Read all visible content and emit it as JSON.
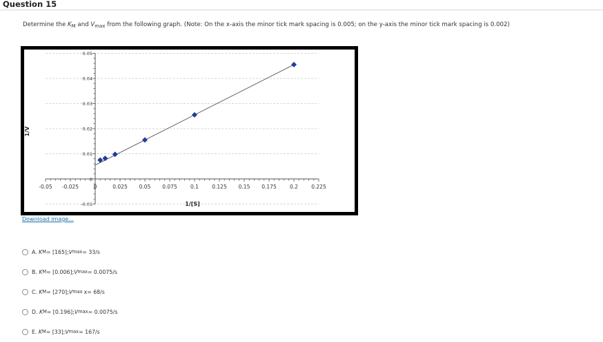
{
  "question": {
    "title": "Question 15",
    "prompt_prefix": "Determine the ",
    "km_symbol": "K",
    "km_sub": "M",
    "and_text": " and ",
    "vmax_symbol": "V",
    "vmax_sub": "max",
    "prompt_suffix": " from the following graph. (Note:  On the x-axis the minor tick mark spacing is 0.005; on the y-axis the minor tick mark spacing is 0.002)"
  },
  "download_link": "Download image...",
  "chart_data": {
    "type": "scatter",
    "xlabel": "1/[S]",
    "ylabel": "1/V",
    "xlim": [
      -0.05,
      0.225
    ],
    "ylim": [
      -0.01,
      0.05
    ],
    "x_ticks": [
      -0.05,
      -0.025,
      0,
      0.025,
      0.05,
      0.075,
      0.1,
      0.125,
      0.15,
      0.175,
      0.2,
      0.225
    ],
    "x_tick_labels": [
      "-0.05",
      "-0.025",
      "0",
      "0.025",
      "0.05",
      "0.075",
      "0.1",
      "0.125",
      "0.15",
      "0.175",
      "0.2",
      "0.225"
    ],
    "y_ticks": [
      -0.01,
      0,
      0.01,
      0.02,
      0.03,
      0.04,
      0.05
    ],
    "y_tick_labels": [
      "-0.01",
      "0",
      "0.01",
      "0.02",
      "0.03",
      "0.04",
      "0.05"
    ],
    "x_minor_step": 0.005,
    "y_minor_step": 0.002,
    "grid": true,
    "series": [
      {
        "points": [
          {
            "x": 0.005,
            "y": 0.0075
          },
          {
            "x": 0.01,
            "y": 0.0082
          },
          {
            "x": 0.02,
            "y": 0.0098
          },
          {
            "x": 0.05,
            "y": 0.0155
          },
          {
            "x": 0.1,
            "y": 0.0255
          },
          {
            "x": 0.2,
            "y": 0.0455
          }
        ],
        "color": "#1f3d99"
      }
    ],
    "trendline": {
      "x_start": 0.0,
      "x_end": 0.2,
      "slope": 0.2,
      "intercept": 0.0055,
      "color": "#555555"
    }
  },
  "options": [
    {
      "letter": "A.",
      "km_value": " = [165]; ",
      "vmax_value": " = 33/s",
      "extra": ""
    },
    {
      "letter": "B.",
      "km_value": " = [0.006]; ",
      "vmax_value": " = 0.0075/s",
      "extra": ""
    },
    {
      "letter": "C.",
      "km_value": " = [270]; ",
      "vmax_value": " = 68/s",
      "extra": "x"
    },
    {
      "letter": "D.",
      "km_value": " = [0.196]; ",
      "vmax_value": " = 0.0075/s",
      "extra": ""
    },
    {
      "letter": "E.",
      "km_value": " = [33]; ",
      "vmax_value": " = 167/s",
      "extra": ""
    }
  ]
}
